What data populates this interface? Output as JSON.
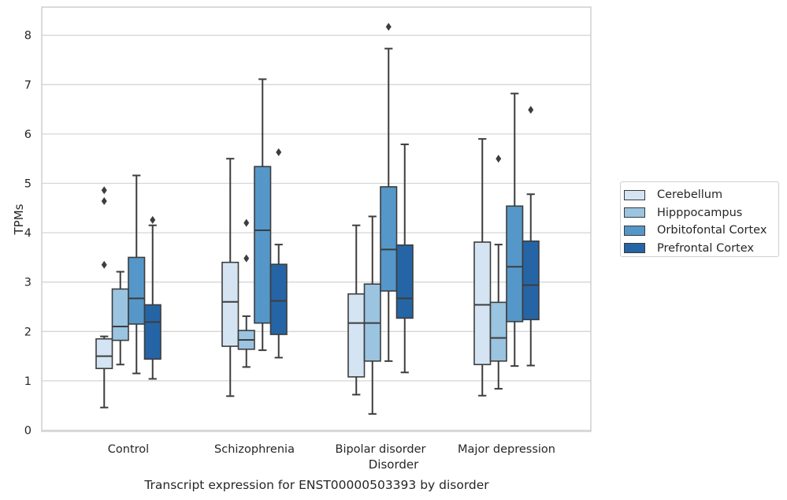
{
  "chart_data": {
    "type": "boxplot",
    "caption": "Transcript expression for ENST00000503393 by disorder",
    "xlabel": "Disorder",
    "ylabel": "TPMs",
    "ylim": [
      -0.03,
      8.58
    ],
    "yticks": [
      "0",
      "1",
      "2",
      "3",
      "4",
      "5",
      "6",
      "7",
      "8"
    ],
    "grid": true,
    "legend_placement": "right, outside",
    "categories": [
      "Control",
      "Schizophrenia",
      "Bipolar disorder",
      "Major depression"
    ],
    "series": [
      {
        "name": "Cerebellum",
        "color": "#d4e4f2",
        "boxes": [
          {
            "whisker_low": 0.46,
            "q1": 1.25,
            "median": 1.5,
            "q3": 1.85,
            "whisker_high": 1.9,
            "outliers": [
              3.35,
              4.64,
              4.86
            ]
          },
          {
            "whisker_low": 0.69,
            "q1": 1.7,
            "median": 2.6,
            "q3": 3.4,
            "whisker_high": 5.5,
            "outliers": []
          },
          {
            "whisker_low": 0.72,
            "q1": 1.08,
            "median": 2.17,
            "q3": 2.76,
            "whisker_high": 4.15,
            "outliers": []
          },
          {
            "whisker_low": 0.7,
            "q1": 1.33,
            "median": 2.54,
            "q3": 3.81,
            "whisker_high": 5.9,
            "outliers": []
          }
        ]
      },
      {
        "name": "Hipppocampus",
        "color": "#9ac4e0",
        "boxes": [
          {
            "whisker_low": 1.33,
            "q1": 1.82,
            "median": 2.1,
            "q3": 2.86,
            "whisker_high": 3.21,
            "outliers": []
          },
          {
            "whisker_low": 1.28,
            "q1": 1.64,
            "median": 1.83,
            "q3": 2.02,
            "whisker_high": 2.31,
            "outliers": [
              3.48,
              4.2
            ]
          },
          {
            "whisker_low": 0.33,
            "q1": 1.4,
            "median": 2.17,
            "q3": 2.96,
            "whisker_high": 4.33,
            "outliers": []
          },
          {
            "whisker_low": 0.84,
            "q1": 1.4,
            "median": 1.87,
            "q3": 2.59,
            "whisker_high": 3.76,
            "outliers": [
              5.5
            ]
          }
        ]
      },
      {
        "name": "Orbitofontal Cortex",
        "color": "#5597c9",
        "boxes": [
          {
            "whisker_low": 1.15,
            "q1": 2.15,
            "median": 2.67,
            "q3": 3.5,
            "whisker_high": 5.16,
            "outliers": []
          },
          {
            "whisker_low": 1.62,
            "q1": 2.17,
            "median": 4.05,
            "q3": 5.34,
            "whisker_high": 7.11,
            "outliers": []
          },
          {
            "whisker_low": 1.4,
            "q1": 2.82,
            "median": 3.66,
            "q3": 4.93,
            "whisker_high": 7.73,
            "outliers": [
              8.17
            ]
          },
          {
            "whisker_low": 1.3,
            "q1": 2.2,
            "median": 3.31,
            "q3": 4.54,
            "whisker_high": 6.82,
            "outliers": []
          }
        ]
      },
      {
        "name": "Prefrontal Cortex",
        "color": "#2565a5",
        "boxes": [
          {
            "whisker_low": 1.04,
            "q1": 1.44,
            "median": 2.19,
            "q3": 2.54,
            "whisker_high": 4.15,
            "outliers": [
              4.26
            ]
          },
          {
            "whisker_low": 1.47,
            "q1": 1.94,
            "median": 2.62,
            "q3": 3.36,
            "whisker_high": 3.76,
            "outliers": [
              5.63
            ]
          },
          {
            "whisker_low": 1.17,
            "q1": 2.27,
            "median": 2.67,
            "q3": 3.75,
            "whisker_high": 5.79,
            "outliers": []
          },
          {
            "whisker_low": 1.31,
            "q1": 2.24,
            "median": 2.94,
            "q3": 3.83,
            "whisker_high": 4.78,
            "outliers": [
              6.49
            ]
          }
        ]
      }
    ]
  }
}
